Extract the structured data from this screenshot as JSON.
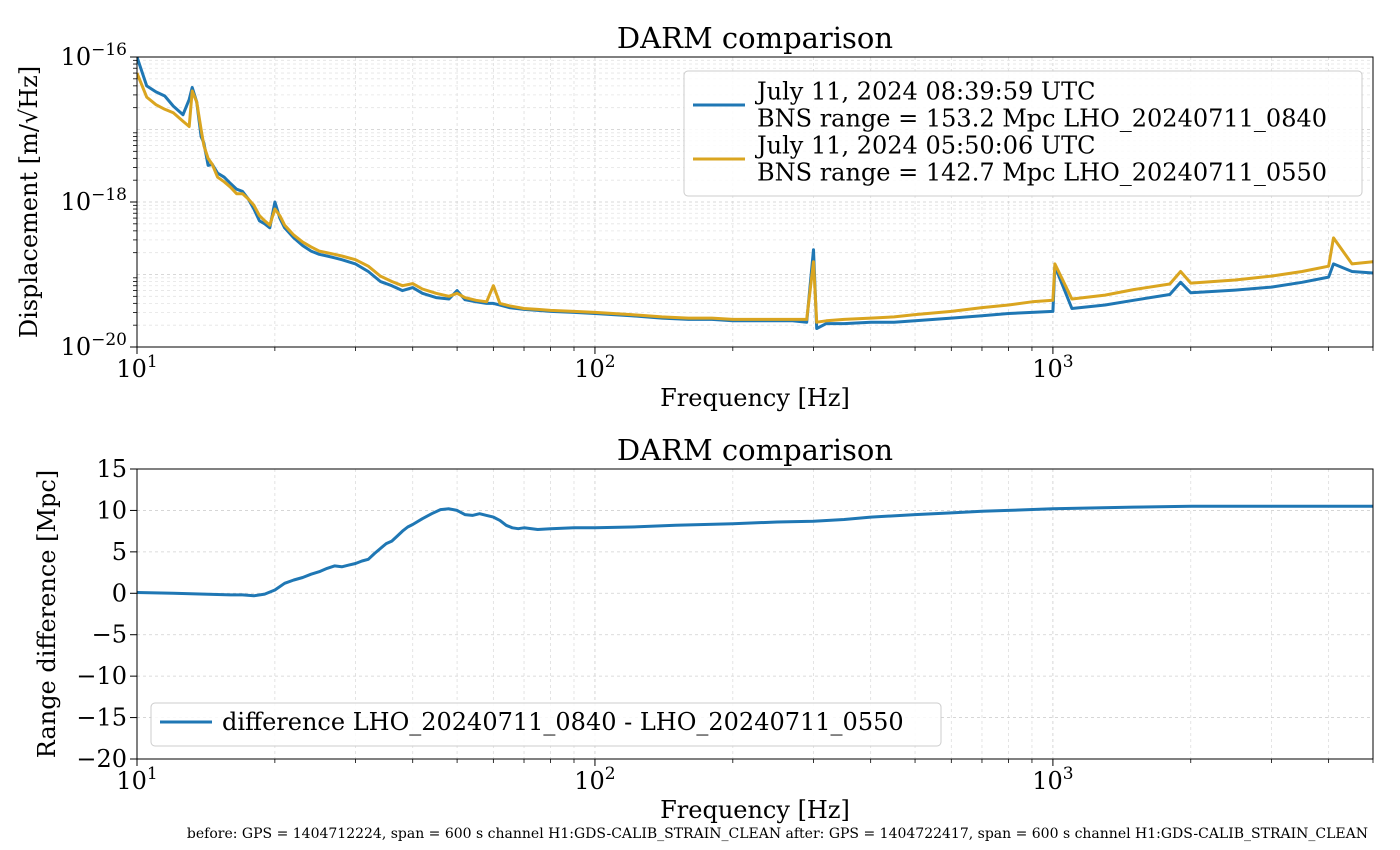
{
  "footnote": "before: GPS = 1404712224, span = 600 s channel H1:GDS-CALIB_STRAIN_CLEAN after: GPS = 1404722417, span = 600 s channel H1:GDS-CALIB_STRAIN_CLEAN",
  "chart_data": [
    {
      "type": "line",
      "title": "DARM comparison",
      "xlabel": "Frequency [Hz]",
      "ylabel": "Displacement [m/√Hz]",
      "xscale": "log",
      "yscale": "log",
      "xlim": [
        10,
        5000
      ],
      "ylim": [
        1e-20,
        1e-16
      ],
      "xticks": [
        {
          "v": 10,
          "base": "10",
          "exp": "1"
        },
        {
          "v": 100,
          "base": "10",
          "exp": "2"
        },
        {
          "v": 1000,
          "base": "10",
          "exp": "3"
        }
      ],
      "yticks": [
        {
          "v": 1e-16,
          "base": "10",
          "exp": "−16"
        },
        {
          "v": 1e-18,
          "base": "10",
          "exp": "−18"
        },
        {
          "v": 1e-20,
          "base": "10",
          "exp": "−20"
        }
      ],
      "grid": true,
      "legend": "top-right",
      "series": [
        {
          "name": "July 11, 2024 08:39:59 UTC\nBNS range = 153.2 Mpc LHO_20240711_0840",
          "color": "#1f77b4",
          "x": [
            10,
            10.5,
            11,
            11.5,
            12,
            12.6,
            13,
            13.2,
            13.5,
            13.8,
            14,
            14.3,
            14.6,
            15,
            15.5,
            16,
            16.5,
            17,
            17.5,
            18,
            18.5,
            19,
            19.5,
            20,
            20.5,
            21,
            22,
            23,
            24,
            25,
            26,
            27,
            28,
            30,
            32,
            34,
            36,
            38,
            40,
            42,
            45,
            48,
            50,
            52,
            55,
            58,
            60,
            62,
            65,
            70,
            75,
            80,
            90,
            100,
            120,
            140,
            160,
            180,
            200,
            220,
            250,
            270,
            290,
            300,
            305,
            320,
            350,
            400,
            450,
            500,
            600,
            700,
            800,
            900,
            1000,
            1010,
            1100,
            1300,
            1500,
            1800,
            1900,
            2000,
            2500,
            3000,
            3500,
            4000,
            4100,
            4500,
            5000
          ],
          "y": [
            1e-16,
            4e-17,
            3.3e-17,
            2.9e-17,
            2.1e-17,
            1.6e-17,
            2.6e-17,
            3.8e-17,
            2.4e-17,
            8e-18,
            6.5e-18,
            3.2e-18,
            3.3e-18,
            2.5e-18,
            2.2e-18,
            1.8e-18,
            1.5e-18,
            1.4e-18,
            1.1e-18,
            8e-19,
            5.5e-19,
            5e-19,
            4.4e-19,
            1e-18,
            6e-19,
            4.4e-19,
            3.2e-19,
            2.5e-19,
            2.1e-19,
            1.9e-19,
            1.8e-19,
            1.7e-19,
            1.6e-19,
            1.4e-19,
            1.1e-19,
            8e-20,
            7e-20,
            6e-20,
            6.6e-20,
            5.5e-20,
            4.8e-20,
            4.6e-20,
            6e-20,
            4.5e-20,
            4.2e-20,
            4e-20,
            4e-20,
            3.8e-20,
            3.5e-20,
            3.3e-20,
            3.2e-20,
            3.1e-20,
            3e-20,
            2.9e-20,
            2.7e-20,
            2.5e-20,
            2.4e-20,
            2.4e-20,
            2.3e-20,
            2.3e-20,
            2.3e-20,
            2.3e-20,
            2.2e-20,
            2.2e-19,
            1.8e-20,
            2.1e-20,
            2.1e-20,
            2.2e-20,
            2.2e-20,
            2.3e-20,
            2.5e-20,
            2.7e-20,
            2.9e-20,
            3e-20,
            3.1e-20,
            1.3e-19,
            3.4e-20,
            3.8e-20,
            4.4e-20,
            5.3e-20,
            7.8e-20,
            5.6e-20,
            6.1e-20,
            6.7e-20,
            7.8e-20,
            9.2e-20,
            1.4e-19,
            1.1e-19,
            1.05e-19
          ]
        },
        {
          "name": "July 11, 2024 05:50:06 UTC\nBNS range = 142.7 Mpc LHO_20240711_0550",
          "color": "#daa520",
          "x": [
            10,
            10.5,
            11,
            11.5,
            12,
            12.6,
            13,
            13.2,
            13.5,
            13.8,
            14,
            14.3,
            14.6,
            15,
            15.5,
            16,
            16.5,
            17,
            17.5,
            18,
            18.5,
            19,
            19.5,
            20,
            20.5,
            21,
            22,
            23,
            24,
            25,
            26,
            27,
            28,
            30,
            32,
            34,
            36,
            38,
            40,
            42,
            45,
            48,
            50,
            52,
            55,
            58,
            60,
            62,
            65,
            70,
            75,
            80,
            90,
            100,
            120,
            140,
            160,
            180,
            200,
            220,
            250,
            270,
            290,
            300,
            305,
            320,
            350,
            400,
            450,
            500,
            600,
            700,
            800,
            900,
            1000,
            1010,
            1100,
            1300,
            1500,
            1800,
            1900,
            2000,
            2500,
            3000,
            3500,
            4000,
            4100,
            4500,
            5000
          ],
          "y": [
            6e-17,
            2.8e-17,
            2.2e-17,
            1.9e-17,
            1.7e-17,
            1.3e-17,
            1.1e-17,
            3.4e-17,
            2.4e-17,
            1e-17,
            6e-18,
            4e-18,
            3.3e-18,
            2.2e-18,
            1.9e-18,
            1.6e-18,
            1.3e-18,
            1.3e-18,
            1.1e-18,
            9e-19,
            6.5e-19,
            5.5e-19,
            4.8e-19,
            8e-19,
            6.5e-19,
            4.8e-19,
            3.5e-19,
            2.8e-19,
            2.4e-19,
            2.1e-19,
            2e-19,
            1.9e-19,
            1.8e-19,
            1.6e-19,
            1.3e-19,
            9.5e-20,
            8e-20,
            7e-20,
            7.5e-20,
            6.3e-20,
            5.5e-20,
            5e-20,
            5.5e-20,
            4.8e-20,
            4.4e-20,
            4.2e-20,
            7e-20,
            4e-20,
            3.7e-20,
            3.4e-20,
            3.3e-20,
            3.2e-20,
            3.1e-20,
            3e-20,
            2.8e-20,
            2.6e-20,
            2.5e-20,
            2.5e-20,
            2.4e-20,
            2.4e-20,
            2.4e-20,
            2.4e-20,
            2.4e-20,
            1.5e-19,
            2.2e-20,
            2.3e-20,
            2.4e-20,
            2.5e-20,
            2.6e-20,
            2.8e-20,
            3.1e-20,
            3.5e-20,
            3.8e-20,
            4.2e-20,
            4.4e-20,
            1.4e-19,
            4.6e-20,
            5.2e-20,
            6.2e-20,
            7.4e-20,
            1.1e-19,
            7.6e-20,
            8.4e-20,
            9.5e-20,
            1.1e-19,
            1.3e-19,
            3.2e-19,
            1.4e-19,
            1.5e-19
          ]
        }
      ]
    },
    {
      "type": "line",
      "title": "DARM comparison",
      "xlabel": "Frequency [Hz]",
      "ylabel": "Range difference [Mpc]",
      "xscale": "log",
      "yscale": "linear",
      "xlim": [
        10,
        5000
      ],
      "ylim": [
        -20,
        15
      ],
      "xticks": [
        {
          "v": 10,
          "base": "10",
          "exp": "1"
        },
        {
          "v": 100,
          "base": "10",
          "exp": "2"
        },
        {
          "v": 1000,
          "base": "10",
          "exp": "3"
        }
      ],
      "yticks": [
        {
          "v": 15,
          "label": "15"
        },
        {
          "v": 10,
          "label": "10"
        },
        {
          "v": 5,
          "label": "5"
        },
        {
          "v": 0,
          "label": "0"
        },
        {
          "v": -5,
          "label": "−5"
        },
        {
          "v": -10,
          "label": "−10"
        },
        {
          "v": -15,
          "label": "−15"
        },
        {
          "v": -20,
          "label": "−20"
        }
      ],
      "grid": true,
      "legend": "bottom-left",
      "series": [
        {
          "name": "difference LHO_20240711_0840 - LHO_20240711_0550",
          "color": "#1f77b4",
          "x": [
            10,
            12,
            14,
            16,
            17,
            18,
            19,
            20,
            21,
            22,
            23,
            24,
            25,
            26,
            27,
            28,
            29,
            30,
            31,
            32,
            33,
            34,
            35,
            36,
            37,
            38,
            39,
            40,
            42,
            44,
            46,
            48,
            50,
            52,
            54,
            56,
            58,
            60,
            62,
            64,
            66,
            68,
            70,
            75,
            80,
            90,
            100,
            120,
            150,
            200,
            250,
            300,
            350,
            400,
            500,
            600,
            700,
            800,
            1000,
            1500,
            2000,
            3000,
            5000
          ],
          "y": [
            0.1,
            0,
            -0.1,
            -0.2,
            -0.2,
            -0.3,
            -0.1,
            0.4,
            1.2,
            1.6,
            1.9,
            2.3,
            2.6,
            3.0,
            3.3,
            3.2,
            3.4,
            3.6,
            3.9,
            4.1,
            4.8,
            5.4,
            6.0,
            6.3,
            6.9,
            7.5,
            8.0,
            8.3,
            9.0,
            9.6,
            10.1,
            10.2,
            10.0,
            9.5,
            9.4,
            9.6,
            9.4,
            9.2,
            8.8,
            8.2,
            7.9,
            7.8,
            7.9,
            7.7,
            7.8,
            7.9,
            7.9,
            8.0,
            8.2,
            8.4,
            8.6,
            8.7,
            8.9,
            9.2,
            9.5,
            9.7,
            9.9,
            10.0,
            10.2,
            10.4,
            10.5,
            10.5,
            10.5
          ]
        }
      ]
    }
  ]
}
